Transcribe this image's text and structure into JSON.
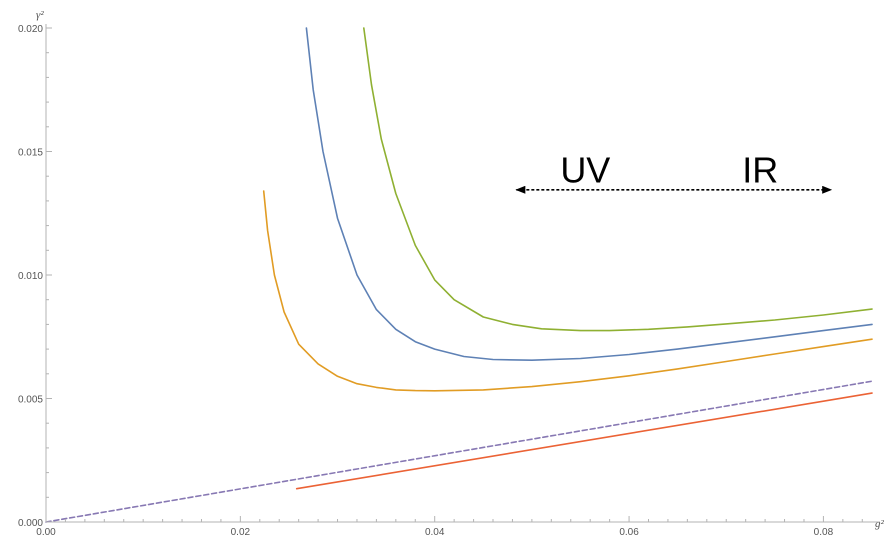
{
  "chart_data": {
    "type": "line",
    "title": "",
    "xlabel": "g²",
    "ylabel": "γ²",
    "xlim": [
      0,
      0.085
    ],
    "ylim": [
      0,
      0.02
    ],
    "x_ticks": [
      0.0,
      0.02,
      0.04,
      0.06,
      0.08
    ],
    "x_tick_labels": [
      "0.00",
      "0.02",
      "0.04",
      "0.06",
      "0.08"
    ],
    "y_ticks": [
      0.0,
      0.005,
      0.01,
      0.015,
      0.02
    ],
    "y_tick_labels": [
      "0.000",
      "0.005",
      "0.010",
      "0.015",
      "0.020"
    ],
    "grid": false,
    "series": [
      {
        "color": "#5e81b5",
        "style": "solid",
        "x": [
          0.0268,
          0.0275,
          0.0285,
          0.03,
          0.032,
          0.034,
          0.036,
          0.038,
          0.04,
          0.043,
          0.046,
          0.05,
          0.055,
          0.06,
          0.065,
          0.07,
          0.075,
          0.08,
          0.085
        ],
        "y": [
          0.02,
          0.0175,
          0.015,
          0.0123,
          0.01,
          0.0086,
          0.0078,
          0.0073,
          0.007,
          0.0067,
          0.00658,
          0.00655,
          0.00662,
          0.00678,
          0.007,
          0.00725,
          0.0075,
          0.00775,
          0.008
        ]
      },
      {
        "color": "#e19c24",
        "style": "solid",
        "x": [
          0.0224,
          0.0228,
          0.0235,
          0.0245,
          0.026,
          0.028,
          0.03,
          0.032,
          0.034,
          0.036,
          0.038,
          0.04,
          0.045,
          0.05,
          0.055,
          0.06,
          0.065,
          0.07,
          0.075,
          0.08,
          0.085
        ],
        "y": [
          0.0134,
          0.0118,
          0.01,
          0.0085,
          0.0072,
          0.0064,
          0.0059,
          0.0056,
          0.00545,
          0.00535,
          0.00532,
          0.00531,
          0.00535,
          0.00548,
          0.00568,
          0.00592,
          0.0062,
          0.0065,
          0.0068,
          0.0071,
          0.0074
        ]
      },
      {
        "color": "#8fb032",
        "style": "solid",
        "x": [
          0.0327,
          0.0335,
          0.0345,
          0.036,
          0.038,
          0.04,
          0.042,
          0.045,
          0.048,
          0.051,
          0.055,
          0.058,
          0.062,
          0.066,
          0.07,
          0.075,
          0.08,
          0.085
        ],
        "y": [
          0.02,
          0.0177,
          0.0155,
          0.0133,
          0.0112,
          0.0098,
          0.009,
          0.0083,
          0.008,
          0.00782,
          0.00775,
          0.00775,
          0.0078,
          0.0079,
          0.00802,
          0.00818,
          0.00838,
          0.00862
        ]
      },
      {
        "color": "#eb6235",
        "style": "solid",
        "x": [
          0.0258,
          0.085
        ],
        "y": [
          0.00135,
          0.00522
        ]
      },
      {
        "color": "#8778b3",
        "style": "dashed",
        "x": [
          0.0,
          0.085
        ],
        "y": [
          0.0,
          0.0057
        ]
      }
    ],
    "annotations": [
      {
        "text": "UV",
        "x": 0.0555,
        "y": 0.0135
      },
      {
        "text": "IR",
        "x": 0.0735,
        "y": 0.0135
      }
    ],
    "arrow": {
      "style": "dashed",
      "heads": "both",
      "x_from": 0.0484,
      "x_to": 0.0808,
      "y": 0.01345,
      "color": "#000000"
    }
  }
}
